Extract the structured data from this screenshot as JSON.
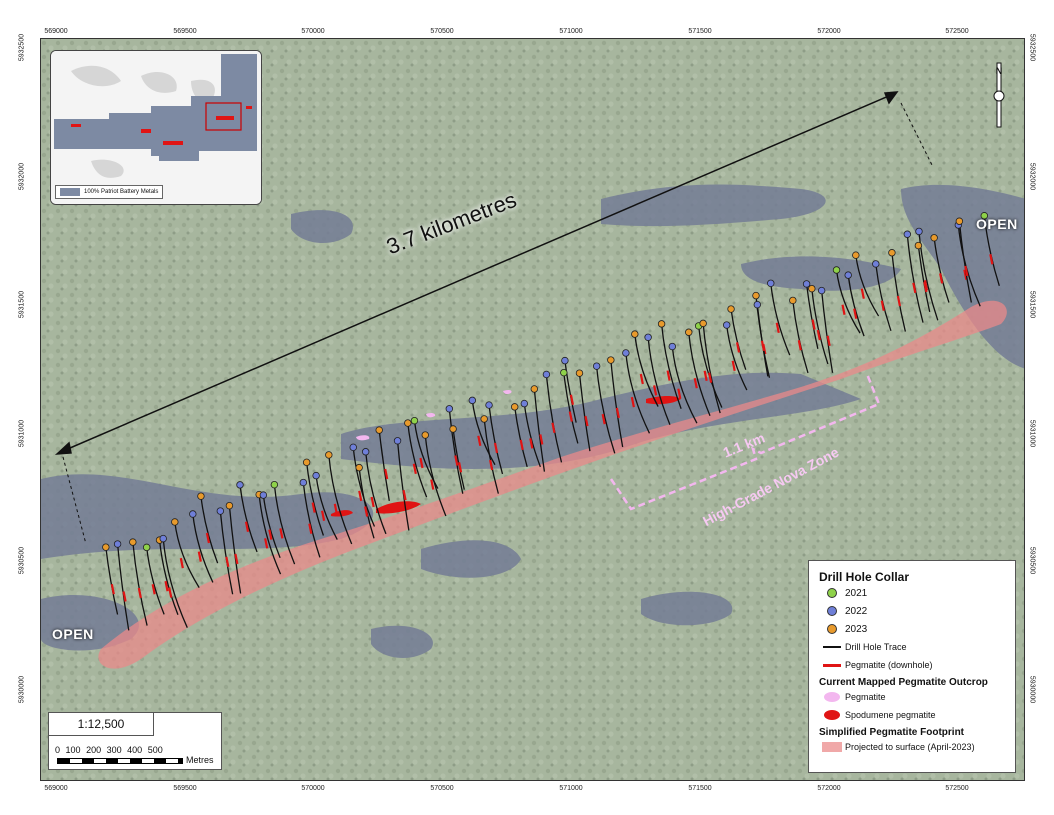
{
  "coords": {
    "x_top": [
      "569000",
      "569500",
      "570000",
      "570500",
      "571000",
      "571500",
      "572000",
      "572500"
    ],
    "x_bottom": [
      "569000",
      "569500",
      "570000",
      "570500",
      "571000",
      "571500",
      "572000",
      "572500"
    ],
    "y_left": [
      "5932500",
      "5932000",
      "5931500",
      "5931000",
      "5930500",
      "5930000"
    ],
    "y_right": [
      "5932500",
      "5932000",
      "5931500",
      "5931000",
      "5930500",
      "5930000"
    ]
  },
  "annotations": {
    "distance": "3.7 kilometres",
    "open_east": "OPEN",
    "open_west": "OPEN",
    "zone_length": "1.1 km",
    "zone_name": "High-Grade Nova Zone"
  },
  "north_arrow": "N",
  "inset": {
    "legend_label": "100% Patriot Battery Metals"
  },
  "legend": {
    "title": "Drill Hole Collar",
    "years": [
      {
        "label": "2021",
        "color": "#8fd24a"
      },
      {
        "label": "2022",
        "color": "#6f7fd8"
      },
      {
        "label": "2023",
        "color": "#e89a2c"
      }
    ],
    "drill_trace": "Drill Hole Trace",
    "pegmatite_downhole": "Pegmatite (downhole)",
    "outcrop_title": "Current Mapped Pegmatite Outcrop",
    "outcrop_pegmatite": "Pegmatite",
    "outcrop_spodumene": "Spodumene pegmatite",
    "footprint_title": "Simplified Pegmatite Footprint",
    "footprint_label": "Projected to surface (April-2023)"
  },
  "scale": {
    "ratio": "1:12,500",
    "ticks": [
      "0",
      "100",
      "200",
      "300",
      "400",
      "500"
    ],
    "unit": "Metres"
  },
  "colors": {
    "collar_2021": "#8fd24a",
    "collar_2022": "#6f7fd8",
    "collar_2023": "#e89a2c",
    "pegmatite_red": "#e01414",
    "footprint": "#e98a8a",
    "outcrop_pink": "#f3b7ef",
    "water": "#4a557a"
  }
}
